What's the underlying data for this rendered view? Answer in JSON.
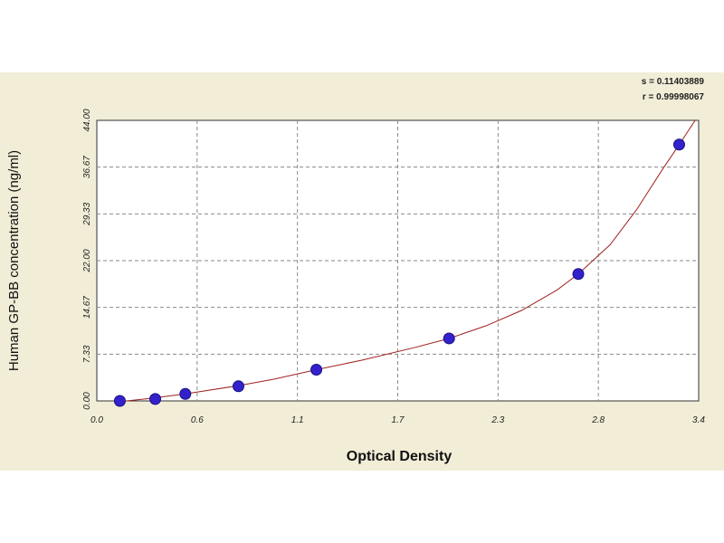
{
  "chart_data": {
    "type": "scatter",
    "xlabel": "Optical Density",
    "ylabel": "Human GP-BB concentration (ng/ml)",
    "x_ticks": [
      "0.0",
      "0.6",
      "1.1",
      "1.7",
      "2.3",
      "2.8",
      "3.4"
    ],
    "y_ticks": [
      "0.00",
      "7.33",
      "14.67",
      "22.00",
      "29.33",
      "36.67",
      "44.00"
    ],
    "xlim": [
      0,
      3.4
    ],
    "ylim": [
      0,
      44
    ],
    "grid": true,
    "series": [
      {
        "points": [
          {
            "x": 0.13,
            "y": 0.0
          },
          {
            "x": 0.33,
            "y": 0.3
          },
          {
            "x": 0.5,
            "y": 1.1
          },
          {
            "x": 0.8,
            "y": 2.3
          },
          {
            "x": 1.24,
            "y": 4.9
          },
          {
            "x": 1.99,
            "y": 9.8
          },
          {
            "x": 2.72,
            "y": 19.9
          },
          {
            "x": 3.29,
            "y": 40.2
          }
        ],
        "marker_color": "#3322cc"
      }
    ],
    "fit_curve": {
      "color": "#a02020",
      "points": [
        [
          0.1,
          -0.2
        ],
        [
          0.3,
          0.4
        ],
        [
          0.5,
          1.1
        ],
        [
          0.8,
          2.4
        ],
        [
          1.0,
          3.4
        ],
        [
          1.24,
          4.9
        ],
        [
          1.5,
          6.4
        ],
        [
          1.8,
          8.4
        ],
        [
          1.99,
          9.8
        ],
        [
          2.2,
          11.8
        ],
        [
          2.4,
          14.2
        ],
        [
          2.6,
          17.4
        ],
        [
          2.72,
          19.9
        ],
        [
          2.9,
          24.5
        ],
        [
          3.05,
          30.0
        ],
        [
          3.2,
          36.5
        ],
        [
          3.29,
          40.2
        ],
        [
          3.38,
          44.0
        ]
      ]
    },
    "stats": {
      "s_text": "s = 0.11403889",
      "r_text": "r = 0.99998067"
    }
  }
}
